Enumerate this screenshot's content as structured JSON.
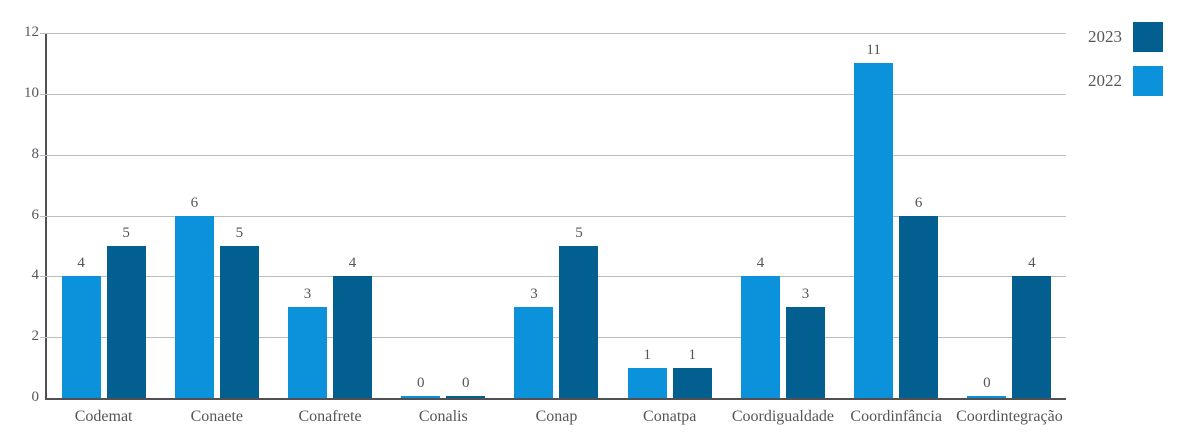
{
  "chart_data": {
    "type": "bar",
    "title": "",
    "categories": [
      "Codemat",
      "Conaete",
      "Conafrete",
      "Conalis",
      "Conap",
      "Conatpa",
      "Coordigualdade",
      "Coordinfância",
      "Coordintegração"
    ],
    "series": [
      {
        "name": "2022",
        "color": "#0c92db",
        "values": [
          4,
          6,
          3,
          0,
          3,
          1,
          4,
          11,
          0
        ]
      },
      {
        "name": "2023",
        "color": "#035f8f",
        "values": [
          5,
          5,
          4,
          0,
          5,
          1,
          3,
          6,
          4
        ]
      }
    ],
    "legend": [
      {
        "label": "2023",
        "color": "#035f8f"
      },
      {
        "label": "2022",
        "color": "#0c92db"
      }
    ],
    "legend_position": "top-right",
    "xlabel": "",
    "ylabel": "",
    "ylim": [
      0,
      12
    ],
    "yticks": [
      0,
      2,
      4,
      6,
      8,
      10,
      12
    ],
    "grid": true,
    "value_labels": true,
    "colors": {
      "axis": "#515155",
      "grid": "#bdbdbd",
      "text": "#55565a"
    }
  }
}
